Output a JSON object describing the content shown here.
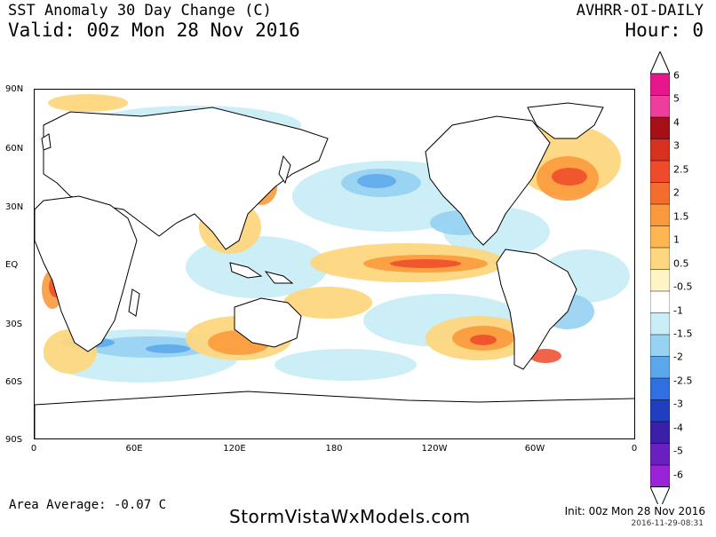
{
  "header": {
    "title": "SST Anomaly 30 Day Change (C)",
    "valid": "Valid: 00z Mon 28 Nov 2016",
    "product": "AVHRR-OI-DAILY",
    "hour": "Hour: 0"
  },
  "axes": {
    "lat_ticks": [
      "90N",
      "60N",
      "30N",
      "EQ",
      "30S",
      "60S",
      "90S"
    ],
    "lon_ticks": [
      "0",
      "60E",
      "120E",
      "180",
      "120W",
      "60W",
      "0"
    ]
  },
  "colorbar": {
    "labels": [
      "6",
      "5",
      "4",
      "3",
      "2.5",
      "2",
      "1.5",
      "1",
      "0.5",
      "-0.5",
      "-1",
      "-1.5",
      "-2",
      "-2.5",
      "-3",
      "-4",
      "-5",
      "-6"
    ],
    "colors": [
      "#e8168c",
      "#ee3d9a",
      "#a50f15",
      "#d7301f",
      "#ef4a2b",
      "#f46d2f",
      "#fb9a3c",
      "#fdb650",
      "#fdd77f",
      "#fff5c4",
      "#ffffff",
      "#c9eef7",
      "#96d2f2",
      "#5aa7ec",
      "#2f6fe0",
      "#1f3fbe",
      "#3a1fa8",
      "#6a1fc0",
      "#9a22d8"
    ]
  },
  "footer": {
    "area_average": "Area Average: -0.07 C",
    "site": "StormVistaWxModels.com",
    "init": "Init: 00z Mon 28 Nov 2016",
    "stamp": "2016-11-29-08:31"
  },
  "colors": {
    "land": "#ffffff",
    "coast": "#000000",
    "warm": "#f46d2f",
    "cool": "#5aa7ec"
  }
}
